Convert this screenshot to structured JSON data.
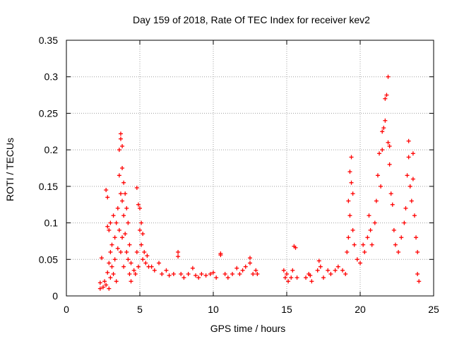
{
  "chart_data": {
    "type": "scatter",
    "title": "Day 159 of 2018, Rate Of TEC Index for receiver kev2",
    "xlabel": "GPS time / hours",
    "ylabel": "ROTI / TECUs",
    "xlim": [
      0,
      25
    ],
    "ylim": [
      0,
      0.35
    ],
    "xticks": [
      0,
      5,
      10,
      15,
      20,
      25
    ],
    "yticks": [
      0,
      0.05,
      0.1,
      0.15,
      0.2,
      0.25,
      0.3,
      0.35
    ],
    "xtick_labels": [
      "0",
      "5",
      "10",
      "15",
      "20",
      "25"
    ],
    "ytick_labels": [
      "0",
      "0.05",
      "0.1",
      "0.15",
      "0.2",
      "0.25",
      "0.3",
      "0.35"
    ],
    "grid": true,
    "marker": "+",
    "marker_color": "#ff0000",
    "series": [
      {
        "name": "kev2",
        "points": [
          [
            2.3,
            0.01
          ],
          [
            2.3,
            0.018
          ],
          [
            2.4,
            0.052
          ],
          [
            2.5,
            0.012
          ],
          [
            2.6,
            0.02
          ],
          [
            2.7,
            0.015
          ],
          [
            2.7,
            0.145
          ],
          [
            2.8,
            0.135
          ],
          [
            2.8,
            0.095
          ],
          [
            2.8,
            0.032
          ],
          [
            2.9,
            0.09
          ],
          [
            2.9,
            0.045
          ],
          [
            2.9,
            0.01
          ],
          [
            3.0,
            0.1
          ],
          [
            3.0,
            0.06
          ],
          [
            3.0,
            0.025
          ],
          [
            3.1,
            0.07
          ],
          [
            3.1,
            0.04
          ],
          [
            3.2,
            0.11
          ],
          [
            3.2,
            0.03
          ],
          [
            3.3,
            0.08
          ],
          [
            3.3,
            0.05
          ],
          [
            3.4,
            0.1
          ],
          [
            3.4,
            0.02
          ],
          [
            3.5,
            0.065
          ],
          [
            3.5,
            0.12
          ],
          [
            3.6,
            0.165
          ],
          [
            3.6,
            0.2
          ],
          [
            3.6,
            0.09
          ],
          [
            3.7,
            0.222
          ],
          [
            3.7,
            0.215
          ],
          [
            3.7,
            0.14
          ],
          [
            3.7,
            0.06
          ],
          [
            3.8,
            0.205
          ],
          [
            3.8,
            0.175
          ],
          [
            3.8,
            0.13
          ],
          [
            3.8,
            0.08
          ],
          [
            3.9,
            0.155
          ],
          [
            3.9,
            0.11
          ],
          [
            3.9,
            0.04
          ],
          [
            4.0,
            0.14
          ],
          [
            4.0,
            0.085
          ],
          [
            4.1,
            0.12
          ],
          [
            4.1,
            0.06
          ],
          [
            4.2,
            0.1
          ],
          [
            4.2,
            0.05
          ],
          [
            4.3,
            0.07
          ],
          [
            4.3,
            0.03
          ],
          [
            4.4,
            0.045
          ],
          [
            4.4,
            0.02
          ],
          [
            4.6,
            0.035
          ],
          [
            4.7,
            0.03
          ],
          [
            4.8,
            0.148
          ],
          [
            4.8,
            0.06
          ],
          [
            4.9,
            0.125
          ],
          [
            4.9,
            0.04
          ],
          [
            5.0,
            0.12
          ],
          [
            5.0,
            0.09
          ],
          [
            5.1,
            0.1
          ],
          [
            5.1,
            0.07
          ],
          [
            5.2,
            0.085
          ],
          [
            5.2,
            0.05
          ],
          [
            5.3,
            0.06
          ],
          [
            5.4,
            0.045
          ],
          [
            5.5,
            0.055
          ],
          [
            5.6,
            0.04
          ],
          [
            5.8,
            0.04
          ],
          [
            6.0,
            0.035
          ],
          [
            6.3,
            0.045
          ],
          [
            6.5,
            0.03
          ],
          [
            6.8,
            0.035
          ],
          [
            7.0,
            0.028
          ],
          [
            7.3,
            0.03
          ],
          [
            7.6,
            0.06
          ],
          [
            7.6,
            0.054
          ],
          [
            7.8,
            0.03
          ],
          [
            8.0,
            0.025
          ],
          [
            8.3,
            0.03
          ],
          [
            8.6,
            0.038
          ],
          [
            8.8,
            0.028
          ],
          [
            9.0,
            0.025
          ],
          [
            9.2,
            0.03
          ],
          [
            9.5,
            0.028
          ],
          [
            9.8,
            0.03
          ],
          [
            10.0,
            0.032
          ],
          [
            10.2,
            0.025
          ],
          [
            10.5,
            0.058
          ],
          [
            10.5,
            0.056
          ],
          [
            10.8,
            0.03
          ],
          [
            11.0,
            0.025
          ],
          [
            11.3,
            0.03
          ],
          [
            11.6,
            0.038
          ],
          [
            11.8,
            0.03
          ],
          [
            12.0,
            0.035
          ],
          [
            12.2,
            0.04
          ],
          [
            12.5,
            0.052
          ],
          [
            12.5,
            0.045
          ],
          [
            12.7,
            0.03
          ],
          [
            12.9,
            0.035
          ],
          [
            13.0,
            0.03
          ],
          [
            14.8,
            0.035
          ],
          [
            14.9,
            0.025
          ],
          [
            15.0,
            0.03
          ],
          [
            15.1,
            0.02
          ],
          [
            15.3,
            0.025
          ],
          [
            15.4,
            0.035
          ],
          [
            15.5,
            0.068
          ],
          [
            15.6,
            0.066
          ],
          [
            15.7,
            0.025
          ],
          [
            16.3,
            0.025
          ],
          [
            16.5,
            0.03
          ],
          [
            16.6,
            0.028
          ],
          [
            16.7,
            0.02
          ],
          [
            17.1,
            0.035
          ],
          [
            17.2,
            0.048
          ],
          [
            17.3,
            0.04
          ],
          [
            17.5,
            0.025
          ],
          [
            17.8,
            0.035
          ],
          [
            18.0,
            0.03
          ],
          [
            18.3,
            0.035
          ],
          [
            18.5,
            0.04
          ],
          [
            18.8,
            0.035
          ],
          [
            19.0,
            0.03
          ],
          [
            19.1,
            0.06
          ],
          [
            19.2,
            0.08
          ],
          [
            19.2,
            0.13
          ],
          [
            19.3,
            0.11
          ],
          [
            19.3,
            0.17
          ],
          [
            19.4,
            0.19
          ],
          [
            19.4,
            0.155
          ],
          [
            19.5,
            0.14
          ],
          [
            19.5,
            0.09
          ],
          [
            19.6,
            0.07
          ],
          [
            19.8,
            0.05
          ],
          [
            20.0,
            0.045
          ],
          [
            20.2,
            0.07
          ],
          [
            20.3,
            0.06
          ],
          [
            20.5,
            0.08
          ],
          [
            20.6,
            0.11
          ],
          [
            20.7,
            0.09
          ],
          [
            20.8,
            0.07
          ],
          [
            21.0,
            0.1
          ],
          [
            21.1,
            0.13
          ],
          [
            21.2,
            0.165
          ],
          [
            21.3,
            0.195
          ],
          [
            21.4,
            0.15
          ],
          [
            21.5,
            0.2
          ],
          [
            21.5,
            0.225
          ],
          [
            21.6,
            0.23
          ],
          [
            21.7,
            0.24
          ],
          [
            21.7,
            0.27
          ],
          [
            21.8,
            0.275
          ],
          [
            21.9,
            0.3
          ],
          [
            21.9,
            0.21
          ],
          [
            22.0,
            0.205
          ],
          [
            22.0,
            0.18
          ],
          [
            22.1,
            0.14
          ],
          [
            22.2,
            0.125
          ],
          [
            22.3,
            0.09
          ],
          [
            22.4,
            0.07
          ],
          [
            22.6,
            0.06
          ],
          [
            22.8,
            0.08
          ],
          [
            23.0,
            0.1
          ],
          [
            23.1,
            0.12
          ],
          [
            23.2,
            0.165
          ],
          [
            23.3,
            0.19
          ],
          [
            23.3,
            0.212
          ],
          [
            23.4,
            0.15
          ],
          [
            23.5,
            0.13
          ],
          [
            23.6,
            0.195
          ],
          [
            23.6,
            0.16
          ],
          [
            23.7,
            0.11
          ],
          [
            23.8,
            0.08
          ],
          [
            23.9,
            0.06
          ],
          [
            23.9,
            0.03
          ],
          [
            24.0,
            0.02
          ]
        ]
      }
    ]
  }
}
